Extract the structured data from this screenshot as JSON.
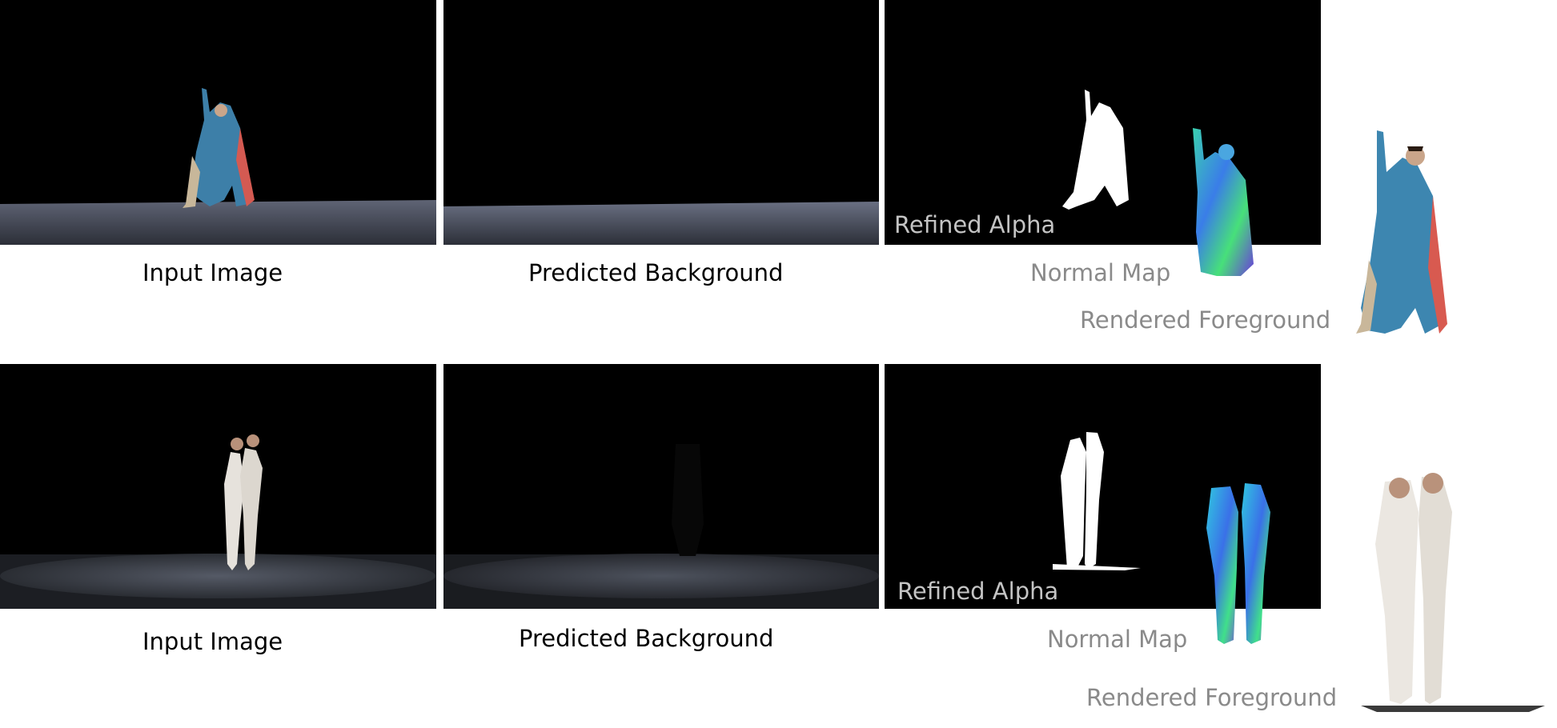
{
  "rows": [
    {
      "input_caption": "Input Image",
      "background_caption": "Predicted Background",
      "alpha_caption": "Refined Alpha",
      "normal_caption": "Normal Map",
      "foreground_caption": "Rendered Foreground"
    },
    {
      "input_caption": "Input Image",
      "background_caption": "Predicted Background",
      "alpha_caption": "Refined Alpha",
      "normal_caption": "Normal Map",
      "foreground_caption": "Rendered Foreground"
    }
  ],
  "colors": {
    "stage_black": "#000000",
    "stage_floor": "#6b7080",
    "alpha_white": "#ffffff",
    "caption_black": "#000000",
    "caption_gray": "#8a8a8a",
    "caption_light": "#c4c4c4"
  }
}
